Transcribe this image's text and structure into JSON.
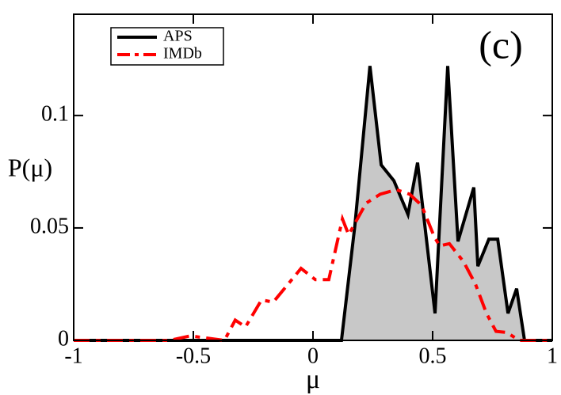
{
  "chart_data": {
    "type": "line",
    "annotation": "(c)",
    "x_label": "μ",
    "y_label": "P(μ)",
    "xlim": [
      -1,
      1
    ],
    "ylim": [
      0,
      0.145
    ],
    "xticks": [
      -1,
      -0.5,
      0,
      0.5,
      1
    ],
    "yticks": [
      0,
      0.05,
      0.1
    ],
    "legend": "upper left",
    "series": [
      {
        "name": "APS",
        "color": "#000000",
        "fill": "#c8c8c8",
        "dash": false,
        "x": [
          -1,
          0.119,
          0.175,
          0.238,
          0.285,
          0.338,
          0.397,
          0.437,
          0.51,
          0.563,
          0.606,
          0.672,
          0.689,
          0.735,
          0.772,
          0.815,
          0.851,
          0.884,
          1
        ],
        "values": [
          0,
          0,
          0.051,
          0.122,
          0.078,
          0.071,
          0.056,
          0.079,
          0.012,
          0.122,
          0.044,
          0.068,
          0.033,
          0.045,
          0.045,
          0.012,
          0.023,
          0,
          0
        ]
      },
      {
        "name": "IMDb",
        "color": "#ff0000",
        "fill": null,
        "dash": true,
        "x": [
          -1,
          -0.6,
          -0.513,
          -0.37,
          -0.325,
          -0.282,
          -0.215,
          -0.166,
          -0.05,
          0.01,
          0.066,
          0.123,
          0.149,
          0.222,
          0.281,
          0.348,
          0.404,
          0.454,
          0.507,
          0.53,
          0.57,
          0.629,
          0.679,
          0.725,
          0.765,
          0.811,
          0.861,
          1
        ],
        "values": [
          0,
          0,
          0.002,
          0,
          0.009,
          0.006,
          0.018,
          0.017,
          0.032,
          0.027,
          0.027,
          0.054,
          0.047,
          0.061,
          0.065,
          0.067,
          0.065,
          0.06,
          0.046,
          0.042,
          0.043,
          0.035,
          0.025,
          0.012,
          0.004,
          0.0035,
          0,
          0
        ]
      }
    ]
  }
}
